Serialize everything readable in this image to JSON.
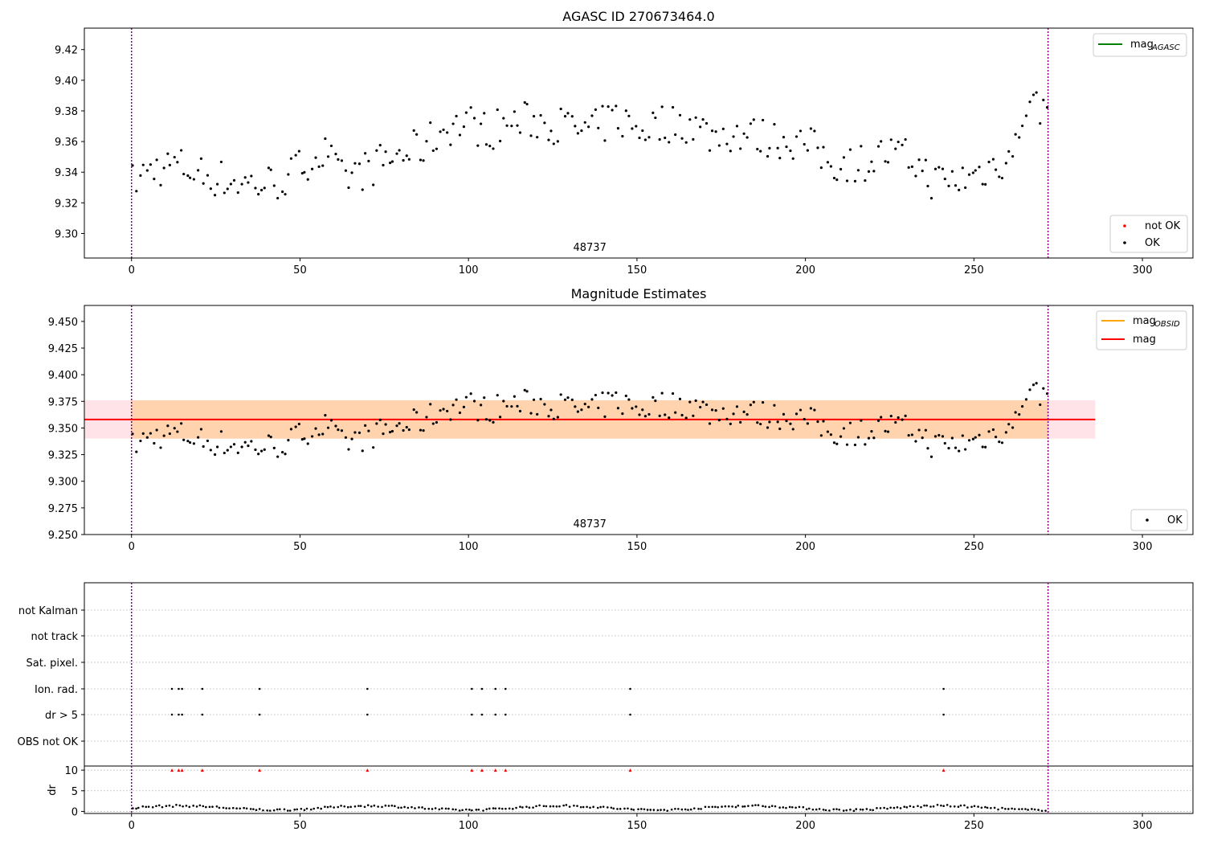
{
  "chart_data": [
    {
      "type": "scatter",
      "title": "AGASC ID 270673464.0",
      "xlim": [
        -14,
        315
      ],
      "ylim": [
        9.284,
        9.434
      ],
      "xticks": [
        0,
        50,
        100,
        150,
        200,
        250,
        300
      ],
      "yticks": [
        9.3,
        9.32,
        9.34,
        9.36,
        9.38,
        9.4,
        9.42
      ],
      "ytick_decimals": 2,
      "annotation": {
        "text": "48737",
        "x": 136
      },
      "vlines": [
        0,
        272
      ],
      "legend_top_right": [
        {
          "label": "mag",
          "sub": "AGASC",
          "color": "#008000"
        }
      ],
      "legend_bottom_right": [
        {
          "label": "not OK",
          "color": "#ff0000"
        },
        {
          "label": "OK",
          "color": "#000000"
        }
      ],
      "grid": false
    },
    {
      "type": "scatter",
      "title": "Magnitude Estimates",
      "xlim": [
        -14,
        315
      ],
      "ylim": [
        9.25,
        9.465
      ],
      "xticks": [
        0,
        50,
        100,
        150,
        200,
        250,
        300
      ],
      "yticks": [
        9.25,
        9.275,
        9.3,
        9.325,
        9.35,
        9.375,
        9.4,
        9.425,
        9.45
      ],
      "ytick_decimals": 3,
      "annotation": {
        "text": "48737",
        "x": 136
      },
      "vlines": [
        0,
        272
      ],
      "mag_line": {
        "value": 9.358,
        "x": [
          -14,
          286
        ],
        "color": "#ff0000"
      },
      "mag_band": {
        "low": 9.34,
        "high": 9.376,
        "color": "#ffc0cb"
      },
      "obsid_band": {
        "low": 9.34,
        "high": 9.376,
        "color": "#ffa500"
      },
      "legend_top_right": [
        {
          "label": "mag",
          "sub": "OBSID",
          "color": "#ffa500"
        },
        {
          "label": "mag",
          "sub": "",
          "color": "#ff0000"
        }
      ],
      "legend_bottom_right": [
        {
          "label": "OK",
          "color": "#000000"
        }
      ],
      "grid": false
    },
    {
      "type": "scatter",
      "title": "",
      "xlim": [
        -14,
        315
      ],
      "xticks": [
        0,
        50,
        100,
        150,
        200,
        250,
        300
      ],
      "flag_rows": [
        "not Kalman",
        "not track",
        "Sat. pixel.",
        "Ion. rad.",
        "dr > 5",
        "OBS not OK"
      ],
      "flag_points": {
        "Ion. rad.": [
          12,
          14,
          15,
          21,
          38,
          70,
          101,
          104,
          108,
          111,
          148,
          241
        ],
        "dr > 5": [
          12,
          14,
          15,
          21,
          38,
          70,
          101,
          104,
          108,
          111,
          148,
          241
        ]
      },
      "dr_ylabel": "dr",
      "dr_yticks": [
        0,
        5,
        10
      ],
      "dr_ylim": [
        -0.5,
        11
      ],
      "dr_clipped_x": [
        12,
        14,
        15,
        21,
        38,
        70,
        101,
        104,
        108,
        111,
        148,
        241
      ],
      "vlines": [
        0,
        272
      ],
      "grid": "dotted"
    }
  ],
  "colors": {
    "ok": "#000000",
    "not_ok": "#ff0000",
    "vline": "#800080"
  }
}
